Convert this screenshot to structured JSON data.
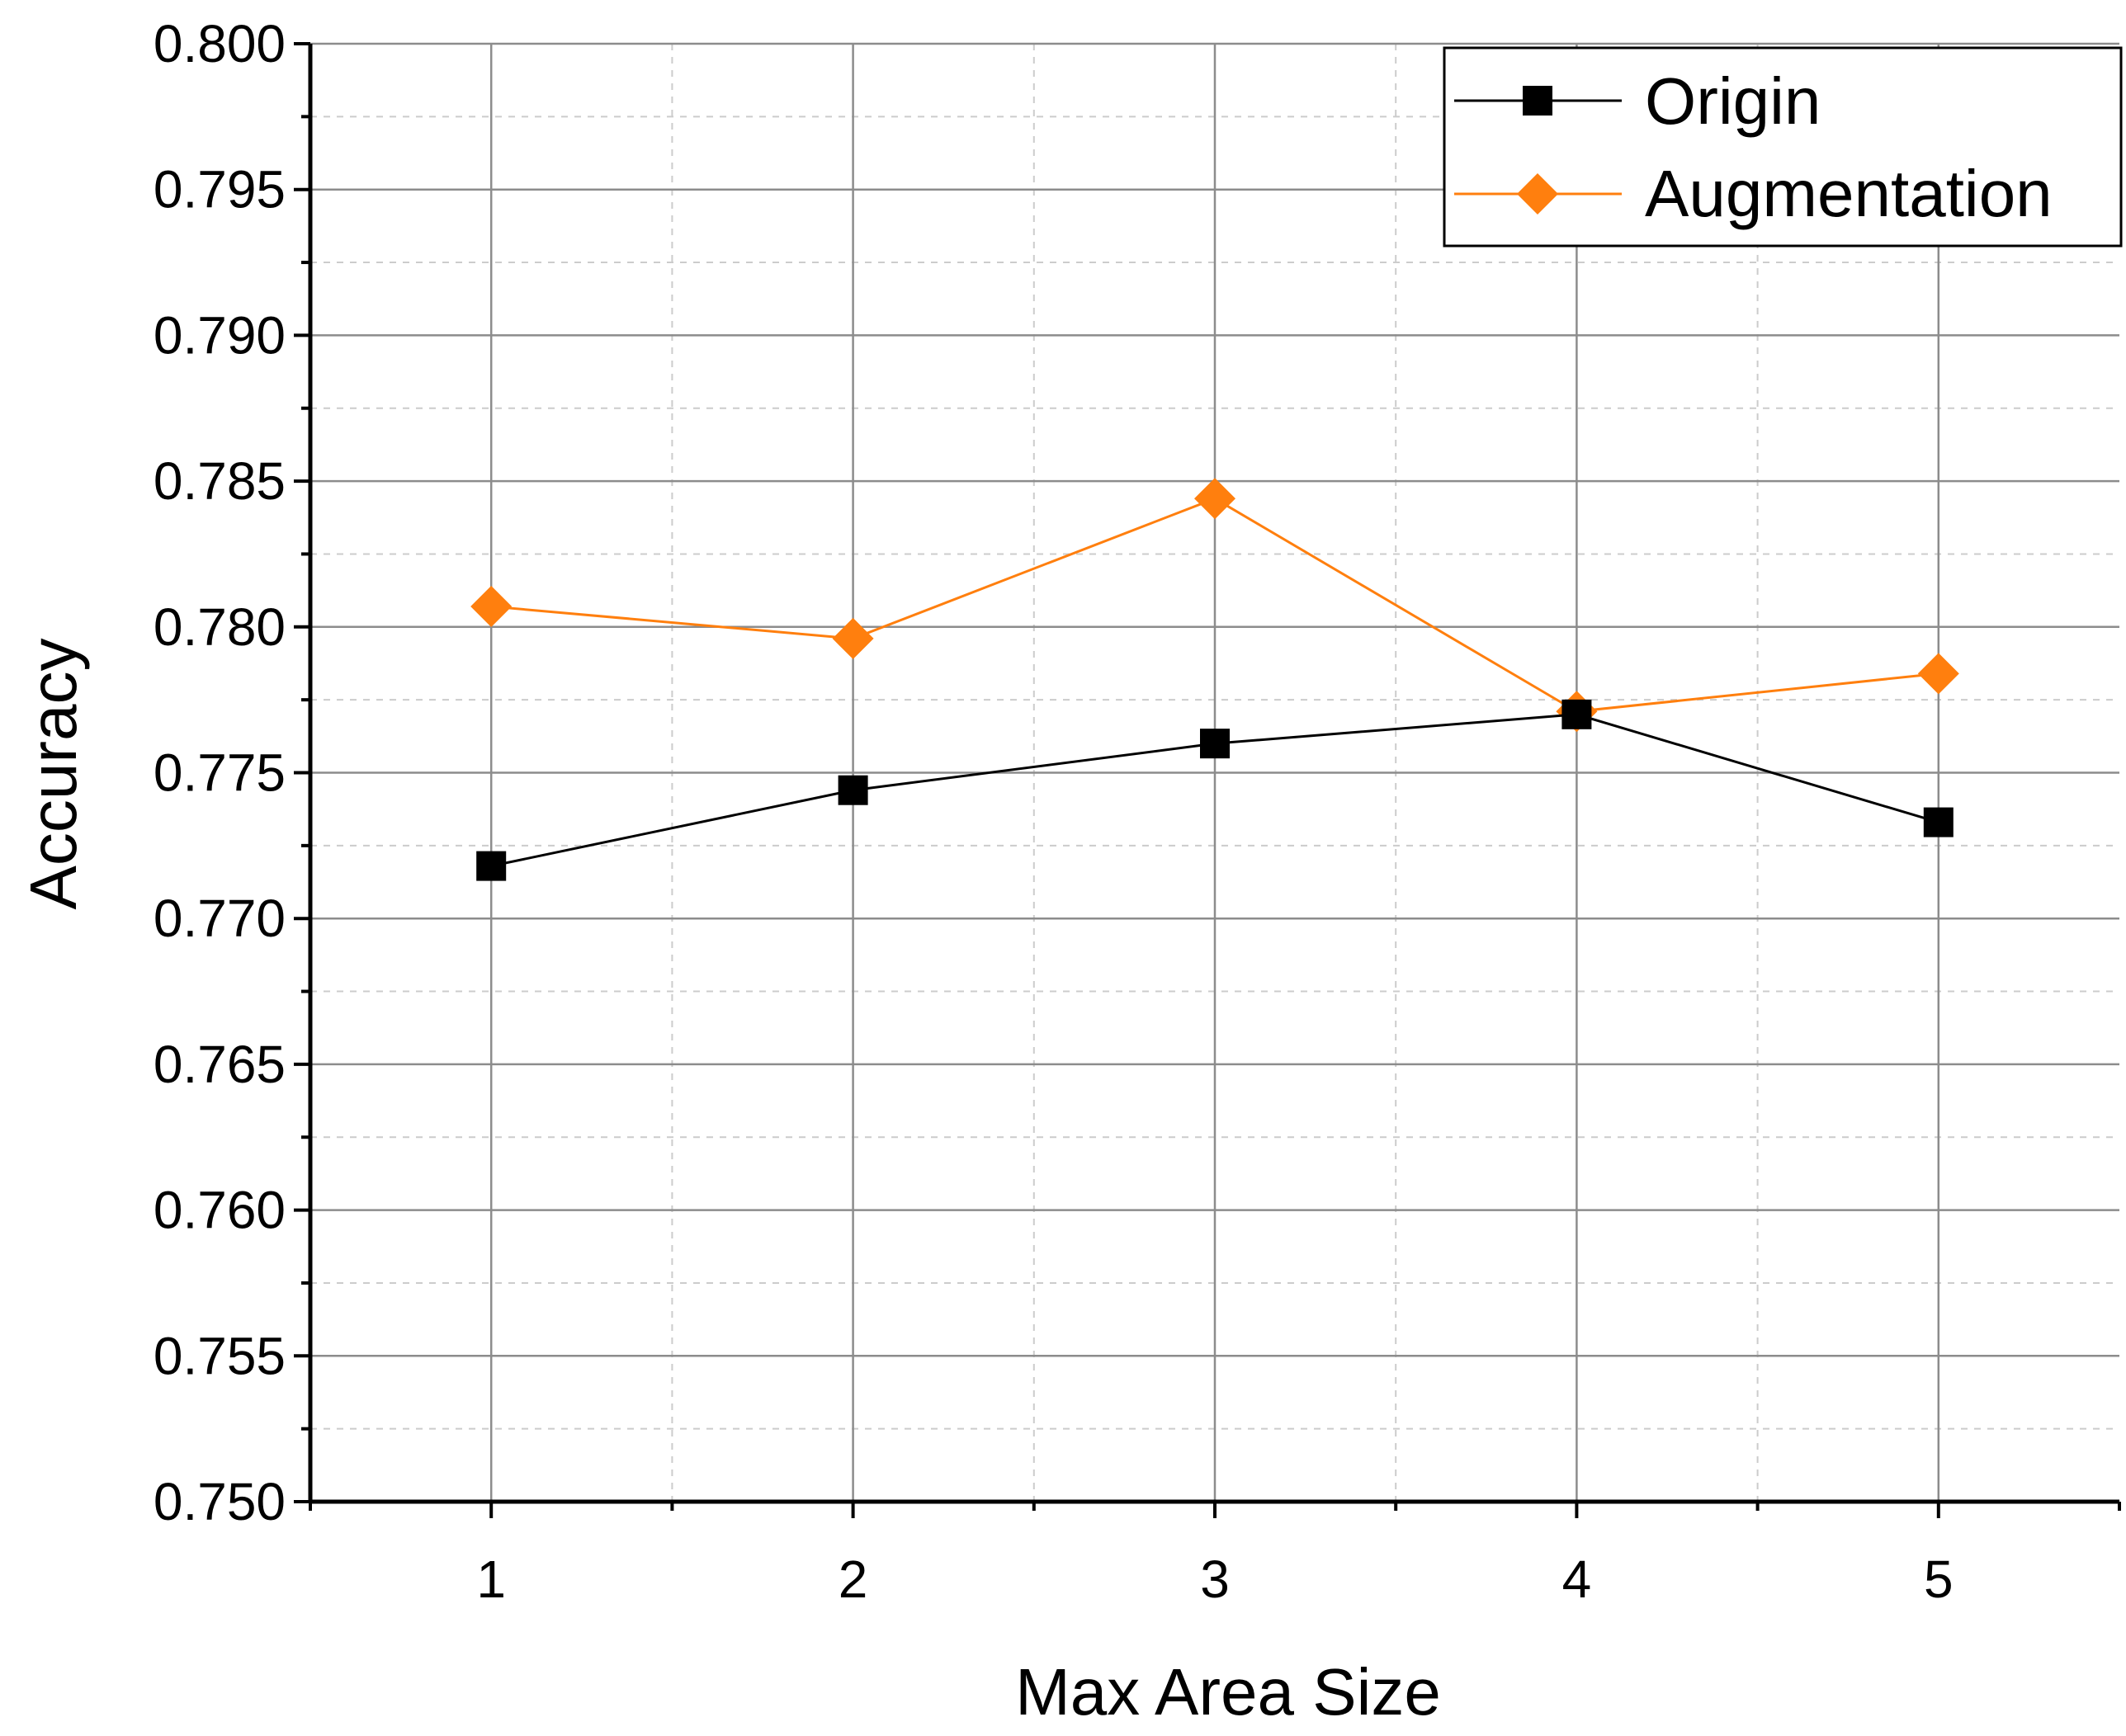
{
  "chart_data": {
    "type": "line",
    "title": "",
    "xlabel": "Max Area Size",
    "ylabel": "Accuracy",
    "x": [
      1,
      2,
      3,
      4,
      5
    ],
    "xlim": [
      0.5,
      5.5
    ],
    "ylim": [
      0.75,
      0.8
    ],
    "x_ticks": [
      1,
      2,
      3,
      4,
      5
    ],
    "x_tick_labels": [
      "1",
      "2",
      "3",
      "4",
      "5"
    ],
    "y_ticks": [
      0.75,
      0.755,
      0.76,
      0.765,
      0.77,
      0.775,
      0.78,
      0.785,
      0.79,
      0.795,
      0.8
    ],
    "y_tick_labels": [
      "0.750",
      "0.755",
      "0.760",
      "0.765",
      "0.770",
      "0.775",
      "0.780",
      "0.785",
      "0.790",
      "0.795",
      "0.800"
    ],
    "grid": true,
    "legend_position": "top-right",
    "series": [
      {
        "name": "Origin",
        "color": "#000000",
        "marker": "square",
        "values": [
          0.7718,
          0.7744,
          0.776,
          0.777,
          0.7733
        ]
      },
      {
        "name": "Augmentation",
        "color": "#ff7f0e",
        "marker": "diamond",
        "values": [
          0.7807,
          0.7796,
          0.7844,
          0.7771,
          0.7784
        ]
      }
    ]
  }
}
